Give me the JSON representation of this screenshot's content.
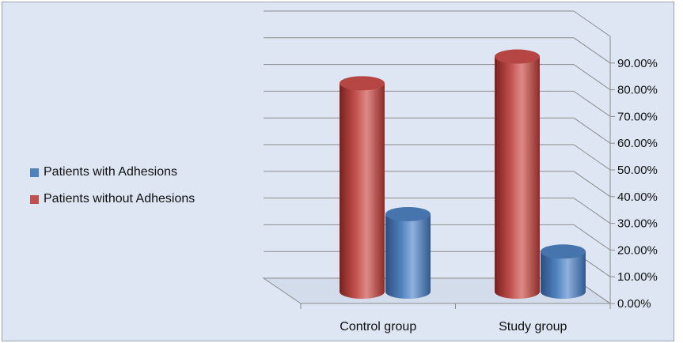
{
  "chart_data": {
    "type": "bar",
    "title": "",
    "xlabel": "",
    "ylabel": "",
    "categories": [
      "Control group",
      "Study group"
    ],
    "series": [
      {
        "name": "Patients without Adhesions",
        "values": [
          0.78,
          0.88
        ],
        "color": "#c0504d"
      },
      {
        "name": "Patients with Adhesions",
        "values": [
          0.29,
          0.15
        ],
        "color": "#4f81bd"
      }
    ],
    "ylim": [
      0,
      0.9
    ],
    "yticks": [
      "0.00%",
      "10.00%",
      "20.00%",
      "30.00%",
      "40.00%",
      "50.00%",
      "60.00%",
      "70.00%",
      "80.00%",
      "90.00%"
    ],
    "legend": {
      "position": "left",
      "items": [
        {
          "label": "Patients with Adhesions",
          "color": "#4f81bd"
        },
        {
          "label": "Patients without Adhesions",
          "color": "#c0504d"
        }
      ]
    },
    "grid": true,
    "style": "3d-cylinder"
  }
}
